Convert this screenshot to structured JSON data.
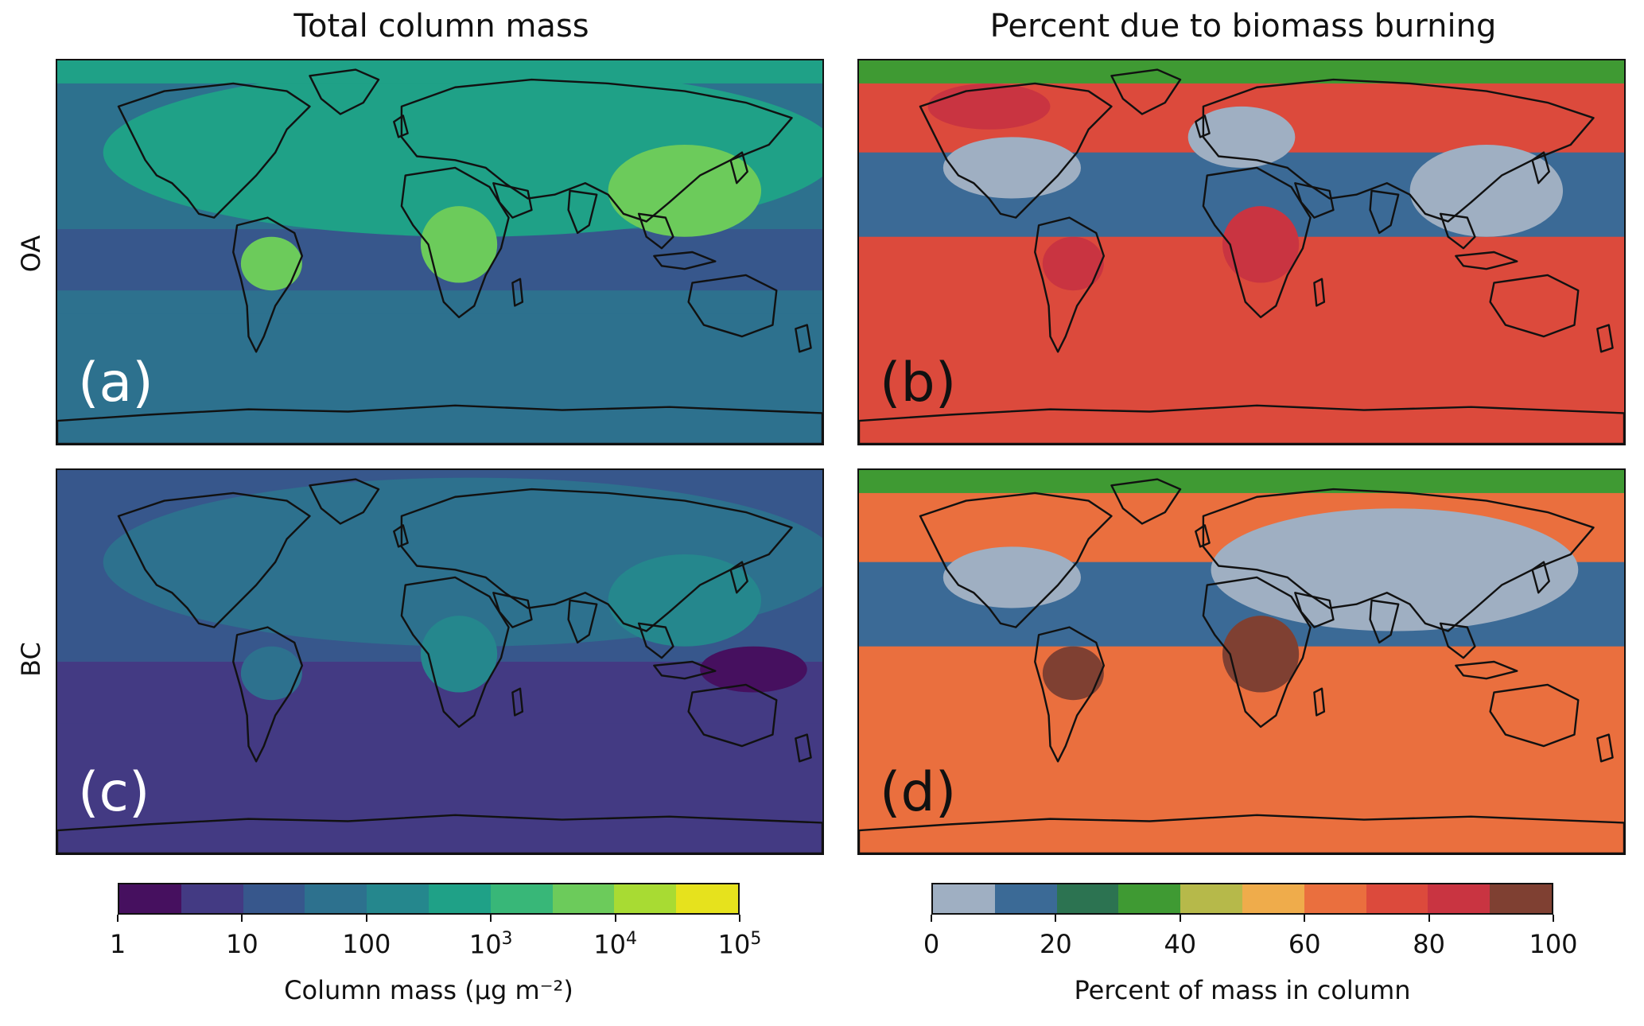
{
  "column_titles": {
    "left": "Total column mass",
    "right": "Percent due to biomass burning"
  },
  "row_labels": {
    "top": "OA",
    "bottom": "BC"
  },
  "panel_letters": {
    "a": "(a)",
    "b": "(b)",
    "c": "(c)",
    "d": "(d)"
  },
  "colors": {
    "mass_bins": [
      "#46105f",
      "#433a83",
      "#37578c",
      "#2d718e",
      "#25878d",
      "#1fa187",
      "#38b778",
      "#6ccb5b",
      "#a8db33",
      "#e6e21d"
    ],
    "percent_bins": [
      "#9fafc2",
      "#3b6a96",
      "#2c7351",
      "#3f9a33",
      "#b6b94a",
      "#efac4b",
      "#ea6f3e",
      "#dc4a3c",
      "#c93441",
      "#7f4032"
    ],
    "continent_outline": "#111111"
  },
  "chart_data": [
    {
      "type": "heatmap",
      "panel": "(a)",
      "title": "Total column mass",
      "row": "OA",
      "colorbar": "column_mass",
      "background_bin": 3,
      "regions": [
        {
          "name": "Southern Ocean and Antarctica",
          "bin": 3
        },
        {
          "name": "Tropical ocean bands",
          "bin": 2
        },
        {
          "name": "Northern continents",
          "bin": 5
        },
        {
          "name": "East Asia",
          "bin": 7
        },
        {
          "name": "Central Africa",
          "bin": 7
        },
        {
          "name": "Amazon",
          "bin": 7
        },
        {
          "name": "Arctic",
          "bin": 5
        }
      ]
    },
    {
      "type": "heatmap",
      "panel": "(b)",
      "title": "Percent due to biomass burning",
      "row": "OA",
      "colorbar": "percent",
      "background_bin": 7,
      "regions": [
        {
          "name": "Southern Hemisphere ocean",
          "bin": 7
        },
        {
          "name": "Northern mid-latitude oceans",
          "bin": 1
        },
        {
          "name": "Eastern USA",
          "bin": 0
        },
        {
          "name": "Europe",
          "bin": 0
        },
        {
          "name": "East Asia",
          "bin": 0
        },
        {
          "name": "Boreal Canada",
          "bin": 8
        },
        {
          "name": "Central Africa",
          "bin": 8
        },
        {
          "name": "Amazon",
          "bin": 8
        },
        {
          "name": "Arctic",
          "bin": 3
        }
      ]
    },
    {
      "type": "heatmap",
      "panel": "(c)",
      "row": "BC",
      "colorbar": "column_mass",
      "background_bin": 1,
      "regions": [
        {
          "name": "Southern Ocean",
          "bin": 1
        },
        {
          "name": "Northern Hemisphere",
          "bin": 2
        },
        {
          "name": "Northern continents",
          "bin": 3
        },
        {
          "name": "East Asia",
          "bin": 4
        },
        {
          "name": "Central Africa",
          "bin": 4
        },
        {
          "name": "Amazon",
          "bin": 3
        },
        {
          "name": "Western Pacific",
          "bin": 0
        }
      ]
    },
    {
      "type": "heatmap",
      "panel": "(d)",
      "row": "BC",
      "colorbar": "percent",
      "background_bin": 6,
      "regions": [
        {
          "name": "Southern Hemisphere ocean",
          "bin": 6
        },
        {
          "name": "Northern mid-latitude oceans",
          "bin": 1
        },
        {
          "name": "Eastern USA",
          "bin": 0
        },
        {
          "name": "Europe and Asia",
          "bin": 0
        },
        {
          "name": "Central Africa",
          "bin": 9
        },
        {
          "name": "Amazon",
          "bin": 9
        },
        {
          "name": "Arctic",
          "bin": 3
        }
      ]
    }
  ],
  "colorbars": {
    "column_mass": {
      "label": "Column mass (μg m⁻²)",
      "scale": "log",
      "range": [
        1,
        100000
      ],
      "bins": 10,
      "ticks": [
        {
          "value": 1,
          "base": "1",
          "exp": ""
        },
        {
          "value": 10,
          "base": "10",
          "exp": ""
        },
        {
          "value": 100,
          "base": "100",
          "exp": ""
        },
        {
          "value": 1000,
          "base": "10",
          "exp": "3"
        },
        {
          "value": 10000,
          "base": "10",
          "exp": "4"
        },
        {
          "value": 100000,
          "base": "10",
          "exp": "5"
        }
      ]
    },
    "percent": {
      "label": "Percent of mass in column",
      "scale": "linear",
      "range": [
        0,
        100
      ],
      "bins": 10,
      "ticks": [
        {
          "value": 0,
          "base": "0",
          "exp": ""
        },
        {
          "value": 20,
          "base": "20",
          "exp": ""
        },
        {
          "value": 40,
          "base": "40",
          "exp": ""
        },
        {
          "value": 60,
          "base": "60",
          "exp": ""
        },
        {
          "value": 80,
          "base": "80",
          "exp": ""
        },
        {
          "value": 100,
          "base": "100",
          "exp": ""
        }
      ]
    }
  }
}
